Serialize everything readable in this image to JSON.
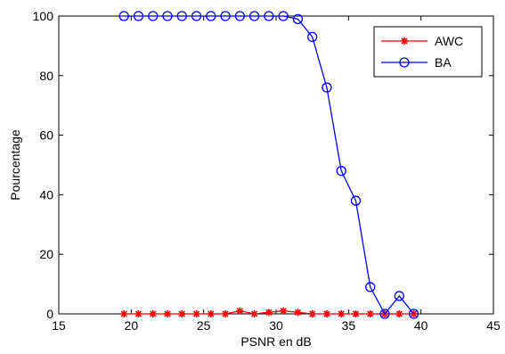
{
  "chart_data": {
    "type": "line",
    "xlabel": "PSNR en dB",
    "ylabel": "Pourcentage",
    "xlim": [
      15,
      45
    ],
    "ylim": [
      0,
      100
    ],
    "xticks": [
      15,
      20,
      25,
      30,
      35,
      40,
      45
    ],
    "yticks": [
      0,
      20,
      40,
      60,
      80,
      100
    ],
    "grid": false,
    "legend_position": "top-right",
    "x": [
      19.5,
      20.5,
      21.5,
      22.5,
      23.5,
      24.5,
      25.5,
      26.5,
      27.5,
      28.5,
      29.5,
      30.5,
      31.5,
      32.5,
      33.5,
      34.5,
      35.5,
      36.5,
      37.5,
      38.5,
      39.5
    ],
    "series": [
      {
        "name": "AWC",
        "color": "#ff0000",
        "marker": "asterisk",
        "values": [
          0,
          0,
          0,
          0,
          0,
          0,
          0,
          0,
          1,
          0,
          0.5,
          1,
          0.5,
          0,
          0,
          0,
          0,
          0,
          0,
          0,
          0
        ]
      },
      {
        "name": "BA",
        "color": "#0000ff",
        "marker": "circle",
        "values": [
          100,
          100,
          100,
          100,
          100,
          100,
          100,
          100,
          100,
          100,
          100,
          100,
          99,
          93,
          76,
          48,
          38,
          9,
          0,
          6,
          0
        ]
      }
    ]
  }
}
